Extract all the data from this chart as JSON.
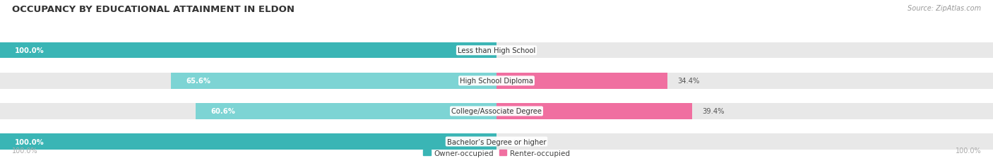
{
  "title": "OCCUPANCY BY EDUCATIONAL ATTAINMENT IN ELDON",
  "source": "Source: ZipAtlas.com",
  "categories": [
    "Less than High School",
    "High School Diploma",
    "College/Associate Degree",
    "Bachelor’s Degree or higher"
  ],
  "owner_values": [
    100.0,
    65.6,
    60.6,
    100.0
  ],
  "renter_values": [
    0.0,
    34.4,
    39.4,
    0.0
  ],
  "owner_color_full": "#3ab5b5",
  "owner_color_partial": "#7dd4d4",
  "renter_color_full": "#f06fa0",
  "renter_color_partial": "#f9c0d0",
  "bar_bg_color": "#e8e8e8",
  "figsize": [
    14.06,
    2.32
  ],
  "dpi": 100,
  "title_fontsize": 9.5,
  "label_fontsize": 7.2,
  "value_fontsize": 7.2,
  "tick_fontsize": 7,
  "legend_fontsize": 7.5,
  "source_fontsize": 7
}
